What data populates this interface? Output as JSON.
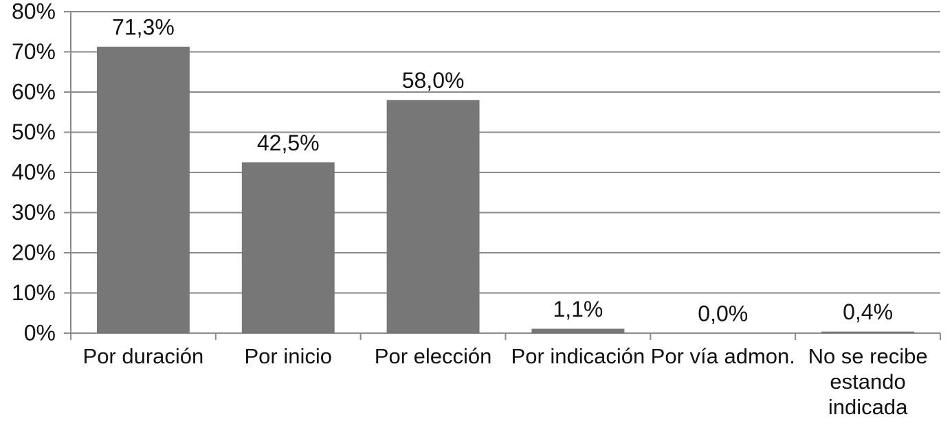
{
  "chart_data": {
    "type": "bar",
    "categories": [
      "Por duración",
      "Por inicio",
      "Por elección",
      "Por indicación",
      "Por vía admon.",
      "No se recibe estando indicada"
    ],
    "values": [
      71.3,
      42.5,
      58.0,
      1.1,
      0.0,
      0.4
    ],
    "value_labels": [
      "71,3%",
      "42,5%",
      "58,0%",
      "1,1%",
      "0,0%",
      "0,4%"
    ],
    "color": "#777777",
    "ylim": [
      0,
      80
    ],
    "yticks": [
      {
        "value": 0,
        "label": "0%"
      },
      {
        "value": 10,
        "label": "10%"
      },
      {
        "value": 20,
        "label": "20%"
      },
      {
        "value": 30,
        "label": "30%"
      },
      {
        "value": 40,
        "label": "40%"
      },
      {
        "value": 50,
        "label": "50%"
      },
      {
        "value": 60,
        "label": "60%"
      },
      {
        "value": 70,
        "label": "70%"
      },
      {
        "value": 80,
        "label": "80%"
      }
    ],
    "grid": true
  }
}
